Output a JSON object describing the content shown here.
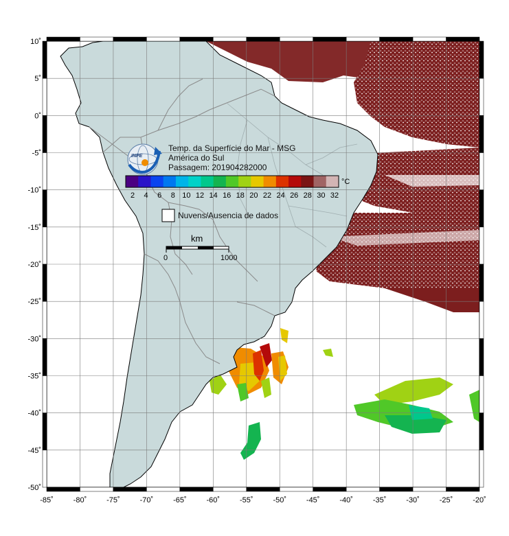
{
  "map": {
    "title_lines": [
      "Temp. da Superfície do Mar - MSG",
      "América do Sul",
      "Passagem: 201904282000"
    ],
    "logo_text": "INPE",
    "colorbar": {
      "unit": "°C",
      "ticks": [
        "2",
        "4",
        "6",
        "8",
        "10",
        "12",
        "14",
        "16",
        "18",
        "20",
        "22",
        "24",
        "26",
        "28",
        "30",
        "32"
      ],
      "colors": [
        "#4b0082",
        "#2a14c8",
        "#0a44f0",
        "#0078f0",
        "#00b4e8",
        "#00d2c8",
        "#00c88c",
        "#14b450",
        "#50c828",
        "#a0d214",
        "#e6c800",
        "#f08c00",
        "#dc3200",
        "#b40a0a",
        "#7a1414",
        "#a06464",
        "#d2b4b4"
      ]
    },
    "legend_nodata": "Nuvens/Ausencia de dados",
    "scalebar": {
      "unit": "km",
      "start": "0",
      "end": "1000"
    },
    "lon_labels": [
      "-85˚",
      "-80˚",
      "-75˚",
      "-70˚",
      "-65˚",
      "-60˚",
      "-55˚",
      "-50˚",
      "-45˚",
      "-40˚",
      "-35˚",
      "-30˚",
      "-25˚",
      "-20˚"
    ],
    "lat_labels": [
      "10˚",
      "5˚",
      "0˚",
      "-5˚",
      "-10˚",
      "-15˚",
      "-20˚",
      "-25˚",
      "-30˚",
      "-35˚",
      "-40˚",
      "-45˚",
      "-50˚"
    ],
    "land_color": "#c9dadb",
    "ocean_warm_color": "#7a1c1c",
    "grid_color": "#7a7a7a"
  }
}
